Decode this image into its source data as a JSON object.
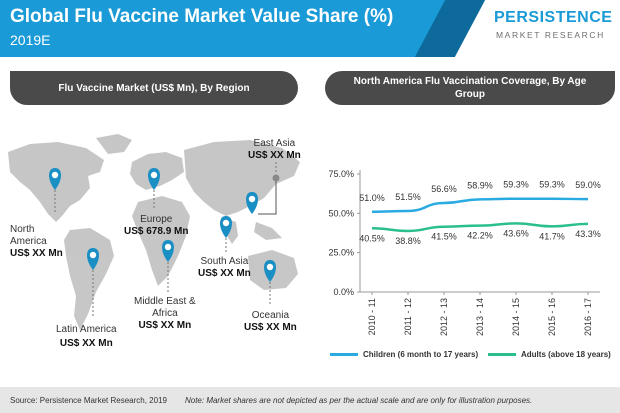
{
  "header": {
    "title": "Global Flu Vaccine Market Value Share (%)",
    "subtitle": "2019E"
  },
  "logo": {
    "top": "PERSISTENCE",
    "bottom": "MARKET RESEARCH"
  },
  "left_panel": {
    "title": "Flu Vaccine Market (US$ Mn), By Region",
    "regions": [
      {
        "name": "North America",
        "name_l1": "North",
        "name_l2": "America",
        "value": "US$ XX Mn"
      },
      {
        "name": "Latin America",
        "value": "US$ XX Mn"
      },
      {
        "name": "Europe",
        "value": "US$ 678.9 Mn"
      },
      {
        "name": "Middle East & Africa",
        "name_l1": "Middle East &",
        "name_l2": "Africa",
        "value": "US$ XX Mn"
      },
      {
        "name": "South Asia",
        "value": "US$ XX Mn"
      },
      {
        "name": "East Asia",
        "value": "US$ XX Mn"
      },
      {
        "name": "Oceania",
        "value": "US$ XX Mn"
      }
    ]
  },
  "right_panel": {
    "title": "North America Flu Vaccination Coverage, By Age Group"
  },
  "colors": {
    "primary": "#1a9ad6",
    "children": "#29abe2",
    "adults": "#2bbf8c",
    "pill": "#4a4a4a",
    "pin": "#1a8fc4"
  },
  "chart_data": {
    "type": "line",
    "categories": [
      "2010 - 11",
      "2011 - 12",
      "2012 - 13",
      "2013 - 14",
      "2014 - 15",
      "2015 - 16",
      "2016 - 17"
    ],
    "series": [
      {
        "name": "Children (6 month to 17 years)",
        "values": [
          51.0,
          51.5,
          56.6,
          58.9,
          59.3,
          59.3,
          59.0
        ],
        "labels": [
          "51.0%",
          "51.5%",
          "56.6%",
          "58.9%",
          "59.3%",
          "59.3%",
          "59.0%"
        ]
      },
      {
        "name": "Adults (above 18 years)",
        "values": [
          40.5,
          38.8,
          41.5,
          42.2,
          43.6,
          41.7,
          43.3
        ],
        "labels": [
          "40.5%",
          "38.8%",
          "41.5%",
          "42.2%",
          "43.6%",
          "41.7%",
          "43.3%"
        ]
      }
    ],
    "ylim": [
      0,
      75
    ],
    "yticks": [
      0,
      25,
      50,
      75
    ],
    "ytick_labels": [
      "0.0%",
      "25.0%",
      "50.0%",
      "75.0%"
    ],
    "grid": false,
    "legend": "bottom"
  },
  "footer": {
    "source": "Source: Persistence Market Research, 2019",
    "note": "Note: Market shares are not depicted as per the actual scale and are only for illustration purposes."
  }
}
